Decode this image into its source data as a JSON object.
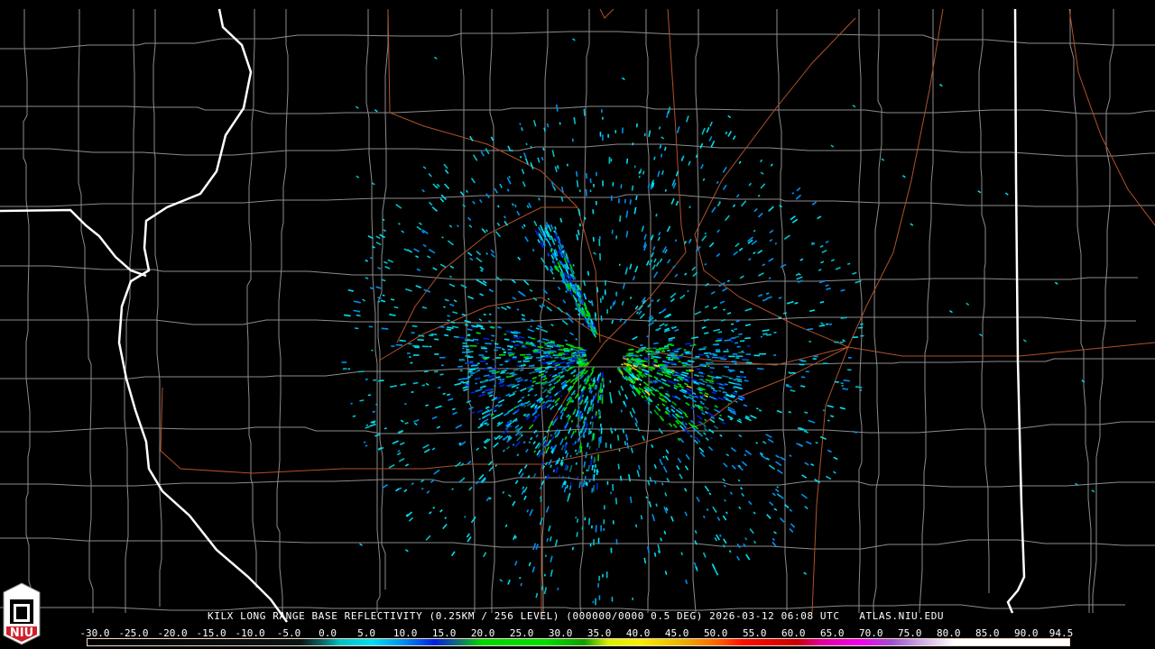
{
  "map": {
    "radar_site": "KILX",
    "background_color": "#000000",
    "state_border_color": "#ffffff",
    "county_border_color": "#8c8c8c",
    "highway_color": "#b0522a"
  },
  "title": "KILX LONG RANGE BASE REFLECTIVITY (0.25KM / 256 LEVEL) (000000/0000 0.5 DEG) 2026-03-12 06:08 UTC   ATLAS.NIU.EDU",
  "colorbar": {
    "labels": [
      "-30.0",
      "-25.0",
      "-20.0",
      "-15.0",
      "-10.0",
      "-5.0",
      "0.0",
      "5.0",
      "10.0",
      "15.0",
      "20.0",
      "25.0",
      "30.0",
      "35.0",
      "40.0",
      "45.0",
      "50.0",
      "55.0",
      "60.0",
      "65.0",
      "70.0",
      "75.0",
      "80.0",
      "85.0",
      "90.0",
      "94.5"
    ],
    "min": -30,
    "max": 94.5,
    "stops": [
      {
        "value": -30,
        "color": "#000000"
      },
      {
        "value": -3,
        "color": "#0a1414"
      },
      {
        "value": 0,
        "color": "#0a6e6e"
      },
      {
        "value": 2,
        "color": "#00c0c8"
      },
      {
        "value": 6,
        "color": "#00e0f0"
      },
      {
        "value": 10,
        "color": "#0090f0"
      },
      {
        "value": 14,
        "color": "#0020e0"
      },
      {
        "value": 17,
        "color": "#106e7a"
      },
      {
        "value": 20,
        "color": "#00d800"
      },
      {
        "value": 28,
        "color": "#00e000"
      },
      {
        "value": 33,
        "color": "#10a000"
      },
      {
        "value": 36,
        "color": "#d8f000"
      },
      {
        "value": 40,
        "color": "#f8f000"
      },
      {
        "value": 45,
        "color": "#e8b800"
      },
      {
        "value": 50,
        "color": "#ff6000"
      },
      {
        "value": 53,
        "color": "#ff1000"
      },
      {
        "value": 60,
        "color": "#c80000"
      },
      {
        "value": 63,
        "color": "#e000a0"
      },
      {
        "value": 68,
        "color": "#f000f0"
      },
      {
        "value": 72,
        "color": "#a050d0"
      },
      {
        "value": 76,
        "color": "#d0b0e8"
      },
      {
        "value": 80,
        "color": "#ffffff"
      },
      {
        "value": 94.5,
        "color": "#ffffff"
      }
    ]
  },
  "logo": {
    "text": "NIU",
    "color": "#d0202a"
  }
}
